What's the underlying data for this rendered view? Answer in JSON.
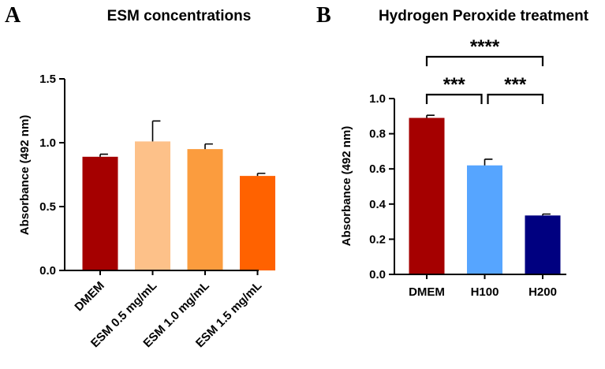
{
  "chart_data": [
    {
      "panel": "A",
      "type": "bar",
      "title": "ESM concentrations",
      "xlabel": "",
      "ylabel": "Absorbance (492 nm)",
      "ylim": [
        0,
        1.5
      ],
      "yticks": [
        "0.0",
        "0.5",
        "1.0",
        "1.5"
      ],
      "categories": [
        "DMEM",
        "ESM 0.5 mg/mL",
        "ESM 1.0 mg/mL",
        "ESM 1.5 mg/mL"
      ],
      "values": [
        0.89,
        1.01,
        0.95,
        0.74
      ],
      "errors": [
        0.02,
        0.16,
        0.04,
        0.02
      ],
      "colors": [
        "#a50000",
        "#fdc189",
        "#fb9c3e",
        "#ff6200"
      ]
    },
    {
      "panel": "B",
      "type": "bar",
      "title": "Hydrogen Peroxide treatment",
      "xlabel": "",
      "ylabel": "Absorbance (492 nm)",
      "ylim": [
        0,
        1.0
      ],
      "yticks": [
        "0.0",
        "0.2",
        "0.4",
        "0.6",
        "0.8",
        "1.0"
      ],
      "categories": [
        "DMEM",
        "H100",
        "H200"
      ],
      "values": [
        0.89,
        0.62,
        0.335
      ],
      "errors": [
        0.015,
        0.035,
        0.008
      ],
      "colors": [
        "#a50000",
        "#56a5ff",
        "#000080"
      ],
      "significance": [
        {
          "from": 0,
          "to": 1,
          "label": "***"
        },
        {
          "from": 1,
          "to": 2,
          "label": "***"
        },
        {
          "from": 0,
          "to": 2,
          "label": "****"
        }
      ]
    }
  ]
}
